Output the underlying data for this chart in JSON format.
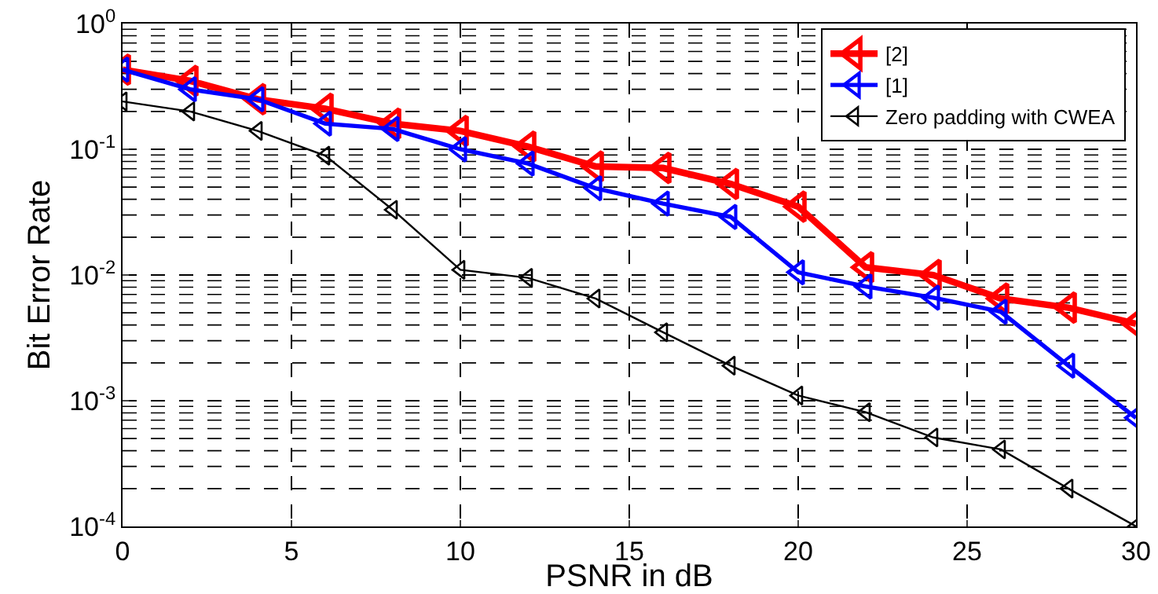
{
  "chart_data": {
    "type": "line",
    "xlabel": "PSNR in dB",
    "ylabel": "Bit Error Rate",
    "x": [
      0,
      2,
      4,
      6,
      8,
      10,
      12,
      14,
      16,
      18,
      20,
      22,
      24,
      26,
      28,
      30
    ],
    "series": [
      {
        "name": "[2]",
        "color": "#ff0000",
        "values": [
          0.43,
          0.35,
          0.25,
          0.21,
          0.16,
          0.14,
          0.105,
          0.073,
          0.071,
          0.053,
          0.035,
          0.0115,
          0.01,
          0.0065,
          0.0055,
          0.0041
        ]
      },
      {
        "name": "[1]",
        "color": "#0000ff",
        "values": [
          0.43,
          0.3,
          0.25,
          0.16,
          0.145,
          0.1,
          0.077,
          0.049,
          0.037,
          0.029,
          0.0105,
          0.0081,
          0.0066,
          0.0051,
          0.0019,
          0.00073
        ]
      },
      {
        "name": "Zero padding with CWEA",
        "color": "#000000",
        "values": [
          0.24,
          0.2,
          0.14,
          0.089,
          0.033,
          0.011,
          0.0095,
          0.0065,
          0.0035,
          0.0019,
          0.0011,
          0.00081,
          0.00051,
          0.00041,
          0.0002,
          0.0001
        ]
      }
    ],
    "xlim": [
      0,
      30
    ],
    "xticks": [
      0,
      5,
      10,
      15,
      20,
      25,
      30
    ],
    "ylim": [
      0.0001,
      1
    ],
    "yticks": [
      {
        "value": 0.0001,
        "label": "10$^{-4}$"
      },
      {
        "value": 0.001,
        "label": "10$^{-3}$"
      },
      {
        "value": 0.01,
        "label": "10$^{-2}$"
      },
      {
        "value": 0.1,
        "label": "10$^{-1}$"
      },
      {
        "value": 1,
        "label": "10$^{0}$"
      }
    ],
    "log": "y",
    "grid": true,
    "legend": "top right",
    "marker": "triangle",
    "line_style": "solid"
  }
}
